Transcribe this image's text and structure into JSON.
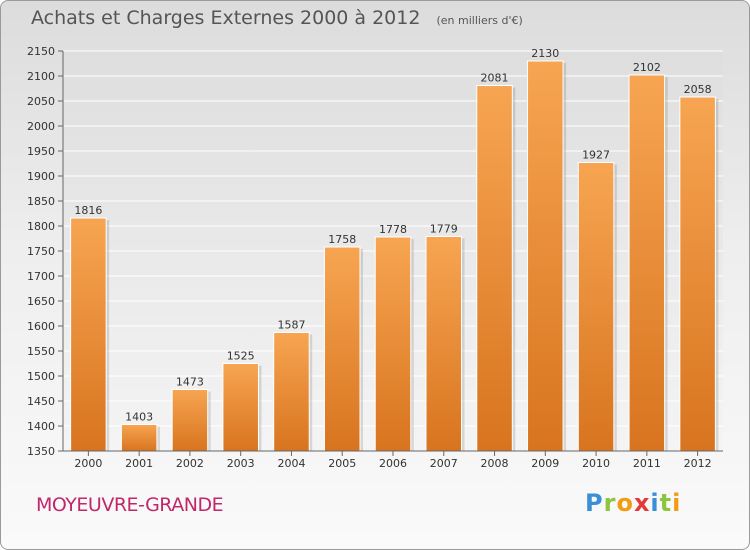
{
  "header": {
    "title": "Achats et Charges Externes 2000 à 2012",
    "unit": "(en milliers d'€)"
  },
  "footer": {
    "city": "MOYEUVRE-GRANDE",
    "logo_letters": [
      {
        "ch": "P",
        "color": "#3b8fd6"
      },
      {
        "ch": "r",
        "color": "#8cc63f"
      },
      {
        "ch": "o",
        "color": "#f39c12"
      },
      {
        "ch": "x",
        "color": "#e53935"
      },
      {
        "ch": "i",
        "color": "#3b8fd6"
      },
      {
        "ch": "t",
        "color": "#8cc63f"
      },
      {
        "ch": "i",
        "color": "#f39c12"
      }
    ]
  },
  "chart_data": {
    "type": "bar",
    "categories": [
      "2000",
      "2001",
      "2002",
      "2003",
      "2004",
      "2005",
      "2006",
      "2007",
      "2008",
      "2009",
      "2010",
      "2011",
      "2012"
    ],
    "values": [
      1816,
      1403,
      1473,
      1525,
      1587,
      1758,
      1778,
      1779,
      2081,
      2130,
      1927,
      2102,
      2058
    ],
    "title": "Achats et Charges Externes 2000 à 2012",
    "ylim": [
      1350,
      2150
    ],
    "yticks": [
      1350,
      1400,
      1450,
      1500,
      1550,
      1600,
      1650,
      1700,
      1750,
      1800,
      1850,
      1900,
      1950,
      2000,
      2050,
      2100,
      2150
    ],
    "grid": true,
    "bar_color_top": "#f7a552",
    "bar_color_bottom": "#d8741f"
  }
}
